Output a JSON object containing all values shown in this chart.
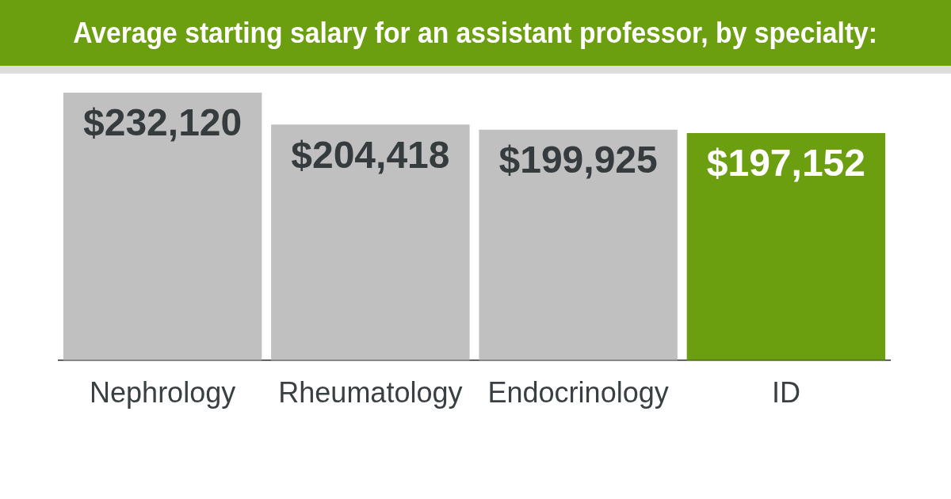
{
  "chart_data": {
    "type": "bar",
    "title": "Average starting salary for an assistant professor, by specialty:",
    "categories": [
      "Nephrology",
      "Rheumatology",
      "Endocrinology",
      "ID"
    ],
    "values": [
      232120,
      204418,
      199925,
      197152
    ],
    "colors": [
      "#c0c0c0",
      "#c0c0c0",
      "#c0c0c0",
      "#6c9f0f"
    ],
    "value_labels": [
      "$232,120",
      "$204,418",
      "$199,925",
      "$197,152"
    ],
    "tick_labels": "x"
  }
}
